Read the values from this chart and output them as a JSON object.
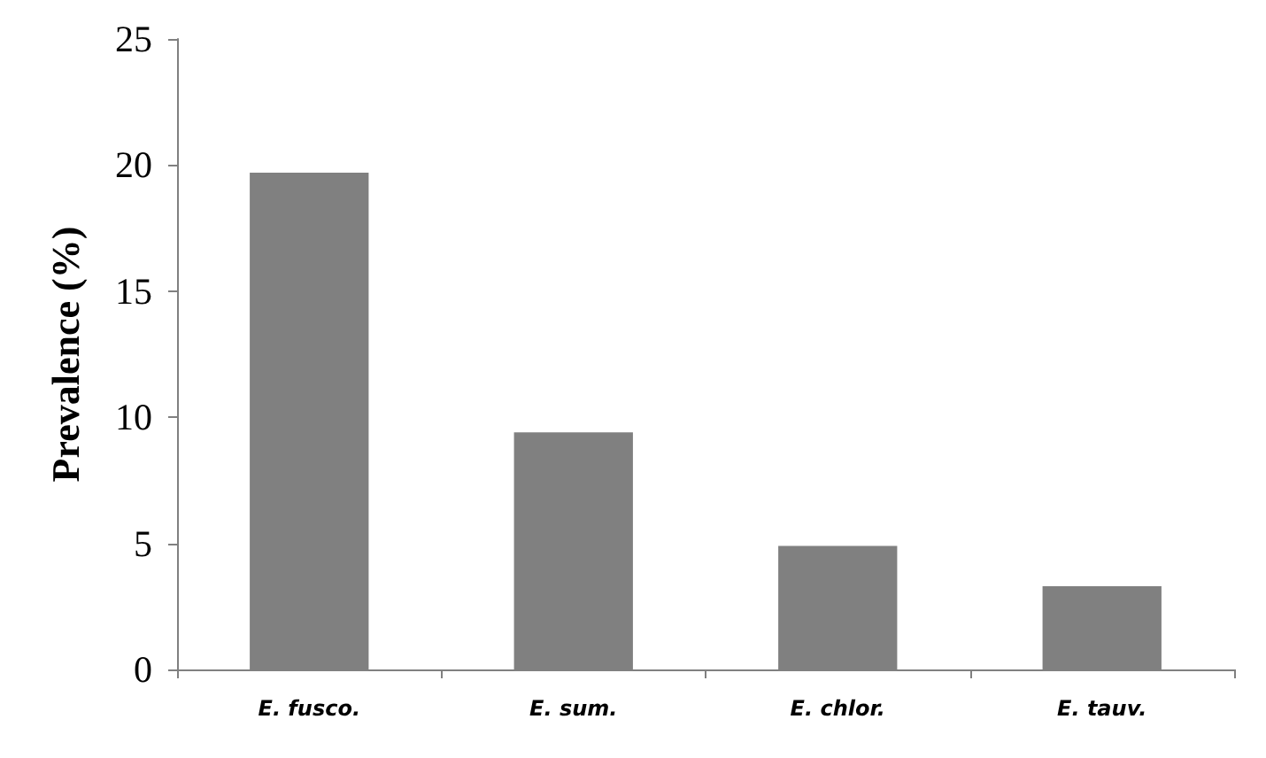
{
  "chart_data": {
    "type": "bar",
    "ylabel": "Prevalence (%)",
    "categories": [
      "E. fusco.",
      "E. sum.",
      "E. chlor.",
      "E. tauv."
    ],
    "values": [
      19.7,
      9.4,
      4.9,
      3.3
    ],
    "color": "#808080",
    "ylim": [
      0,
      25
    ],
    "yticks": [
      0,
      5,
      10,
      15,
      20,
      25
    ],
    "grid": false
  }
}
